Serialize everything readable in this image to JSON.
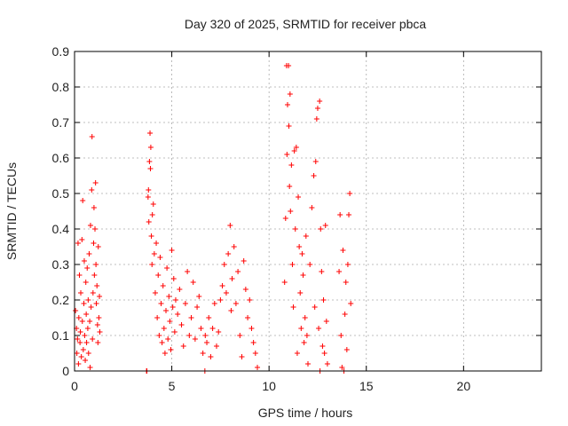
{
  "chart_data": {
    "type": "scatter",
    "title": "Day 320 of 2025, SRMTID for receiver pbca",
    "xlabel": "GPS time / hours",
    "ylabel": "SRMTID / TECUs",
    "xlim": [
      0,
      24
    ],
    "ylim": [
      0,
      0.9
    ],
    "xticks": [
      0,
      5,
      10,
      15,
      20
    ],
    "yticks": [
      0,
      0.1,
      0.2,
      0.3,
      0.4,
      0.5,
      0.6,
      0.7,
      0.8,
      0.9
    ],
    "grid": true,
    "marker": "plus",
    "color": "#ff0000",
    "series": [
      {
        "name": "SRMTID",
        "points": [
          [
            0.05,
            0.17
          ],
          [
            0.1,
            0.12
          ],
          [
            0.12,
            0.05
          ],
          [
            0.15,
            0.09
          ],
          [
            0.18,
            0.36
          ],
          [
            0.2,
            0.02
          ],
          [
            0.22,
            0.15
          ],
          [
            0.25,
            0.27
          ],
          [
            0.28,
            0.08
          ],
          [
            0.3,
            0.11
          ],
          [
            0.32,
            0.22
          ],
          [
            0.35,
            0.04
          ],
          [
            0.38,
            0.37
          ],
          [
            0.4,
            0.14
          ],
          [
            0.42,
            0.48
          ],
          [
            0.45,
            0.06
          ],
          [
            0.48,
            0.19
          ],
          [
            0.5,
            0.31
          ],
          [
            0.52,
            0.1
          ],
          [
            0.55,
            0.03
          ],
          [
            0.58,
            0.25
          ],
          [
            0.6,
            0.16
          ],
          [
            0.62,
            0.08
          ],
          [
            0.65,
            0.29
          ],
          [
            0.68,
            0.12
          ],
          [
            0.7,
            0.2
          ],
          [
            0.72,
            0.05
          ],
          [
            0.75,
            0.33
          ],
          [
            0.78,
            0.14
          ],
          [
            0.8,
            0.01
          ],
          [
            0.82,
            0.41
          ],
          [
            0.85,
            0.18
          ],
          [
            0.88,
            0.51
          ],
          [
            0.9,
            0.66
          ],
          [
            0.92,
            0.09
          ],
          [
            0.95,
            0.22
          ],
          [
            0.98,
            0.36
          ],
          [
            1.0,
            0.46
          ],
          [
            1.02,
            0.27
          ],
          [
            1.05,
            0.4
          ],
          [
            1.08,
            0.53
          ],
          [
            1.1,
            0.3
          ],
          [
            1.12,
            0.19
          ],
          [
            1.15,
            0.24
          ],
          [
            1.18,
            0.13
          ],
          [
            1.2,
            0.08
          ],
          [
            1.22,
            0.35
          ],
          [
            1.25,
            0.15
          ],
          [
            1.28,
            0.21
          ],
          [
            1.3,
            0.11
          ],
          [
            3.7,
            0.0
          ],
          [
            3.72,
            0.0
          ],
          [
            3.78,
            0.49
          ],
          [
            3.8,
            0.51
          ],
          [
            3.82,
            0.42
          ],
          [
            3.85,
            0.59
          ],
          [
            3.88,
            0.67
          ],
          [
            3.9,
            0.57
          ],
          [
            3.92,
            0.63
          ],
          [
            3.95,
            0.38
          ],
          [
            3.98,
            0.3
          ],
          [
            4.0,
            0.44
          ],
          [
            4.05,
            0.47
          ],
          [
            4.1,
            0.33
          ],
          [
            4.15,
            0.22
          ],
          [
            4.2,
            0.36
          ],
          [
            4.25,
            0.15
          ],
          [
            4.3,
            0.27
          ],
          [
            4.35,
            0.1
          ],
          [
            4.4,
            0.32
          ],
          [
            4.45,
            0.19
          ],
          [
            4.5,
            0.08
          ],
          [
            4.55,
            0.24
          ],
          [
            4.6,
            0.12
          ],
          [
            4.65,
            0.05
          ],
          [
            4.7,
            0.17
          ],
          [
            4.75,
            0.29
          ],
          [
            4.8,
            0.09
          ],
          [
            4.85,
            0.21
          ],
          [
            4.9,
            0.14
          ],
          [
            4.95,
            0.06
          ],
          [
            5.0,
            0.34
          ],
          [
            5.05,
            0.18
          ],
          [
            5.1,
            0.26
          ],
          [
            5.15,
            0.11
          ],
          [
            5.2,
            0.2
          ],
          [
            5.3,
            0.16
          ],
          [
            5.4,
            0.23
          ],
          [
            5.5,
            0.13
          ],
          [
            5.6,
            0.07
          ],
          [
            5.7,
            0.19
          ],
          [
            5.8,
            0.28
          ],
          [
            5.9,
            0.1
          ],
          [
            6.0,
            0.15
          ],
          [
            6.1,
            0.25
          ],
          [
            6.2,
            0.09
          ],
          [
            6.3,
            0.18
          ],
          [
            6.4,
            0.21
          ],
          [
            6.5,
            0.12
          ],
          [
            6.6,
            0.05
          ],
          [
            6.7,
            0.0
          ],
          [
            6.72,
            0.1
          ],
          [
            6.8,
            0.08
          ],
          [
            6.9,
            0.15
          ],
          [
            7.0,
            0.04
          ],
          [
            7.1,
            0.12
          ],
          [
            7.2,
            0.19
          ],
          [
            7.3,
            0.07
          ],
          [
            7.4,
            0.11
          ],
          [
            7.5,
            0.2
          ],
          [
            7.6,
            0.24
          ],
          [
            7.7,
            0.3
          ],
          [
            7.8,
            0.22
          ],
          [
            7.9,
            0.33
          ],
          [
            8.0,
            0.41
          ],
          [
            8.05,
            0.17
          ],
          [
            8.1,
            0.26
          ],
          [
            8.2,
            0.35
          ],
          [
            8.3,
            0.19
          ],
          [
            8.4,
            0.28
          ],
          [
            8.5,
            0.1
          ],
          [
            8.6,
            0.04
          ],
          [
            8.7,
            0.31
          ],
          [
            8.8,
            0.23
          ],
          [
            8.9,
            0.15
          ],
          [
            9.0,
            0.2
          ],
          [
            9.1,
            0.12
          ],
          [
            9.2,
            0.08
          ],
          [
            9.3,
            0.05
          ],
          [
            9.4,
            0.01
          ],
          [
            10.8,
            0.25
          ],
          [
            10.85,
            0.43
          ],
          [
            10.9,
            0.86
          ],
          [
            10.92,
            0.61
          ],
          [
            10.95,
            0.75
          ],
          [
            11.0,
            0.86
          ],
          [
            11.02,
            0.69
          ],
          [
            11.05,
            0.52
          ],
          [
            11.08,
            0.78
          ],
          [
            11.1,
            0.45
          ],
          [
            11.15,
            0.58
          ],
          [
            11.2,
            0.3
          ],
          [
            11.25,
            0.18
          ],
          [
            11.3,
            0.62
          ],
          [
            11.35,
            0.4
          ],
          [
            11.4,
            0.63
          ],
          [
            11.45,
            0.05
          ],
          [
            11.5,
            0.49
          ],
          [
            11.55,
            0.35
          ],
          [
            11.6,
            0.22
          ],
          [
            11.65,
            0.12
          ],
          [
            11.7,
            0.33
          ],
          [
            11.75,
            0.27
          ],
          [
            11.8,
            0.08
          ],
          [
            11.85,
            0.15
          ],
          [
            11.9,
            0.38
          ],
          [
            11.95,
            0.1
          ],
          [
            12.0,
            0.02
          ],
          [
            12.1,
            0.3
          ],
          [
            12.2,
            0.46
          ],
          [
            12.3,
            0.55
          ],
          [
            12.35,
            0.18
          ],
          [
            12.4,
            0.59
          ],
          [
            12.45,
            0.71
          ],
          [
            12.5,
            0.74
          ],
          [
            12.55,
            0.12
          ],
          [
            12.6,
            0.76
          ],
          [
            12.62,
            0.0
          ],
          [
            12.65,
            0.4
          ],
          [
            12.7,
            0.28
          ],
          [
            12.75,
            0.07
          ],
          [
            12.8,
            0.2
          ],
          [
            12.85,
            0.05
          ],
          [
            12.9,
            0.41
          ],
          [
            12.95,
            0.14
          ],
          [
            13.0,
            0.02
          ],
          [
            13.6,
            0.28
          ],
          [
            13.65,
            0.44
          ],
          [
            13.7,
            0.1
          ],
          [
            13.75,
            0.01
          ],
          [
            13.8,
            0.34
          ],
          [
            13.85,
            0.0
          ],
          [
            13.9,
            0.16
          ],
          [
            13.95,
            0.25
          ],
          [
            14.0,
            0.06
          ],
          [
            14.05,
            0.3
          ],
          [
            14.1,
            0.44
          ],
          [
            14.15,
            0.5
          ],
          [
            14.2,
            0.19
          ]
        ]
      }
    ]
  }
}
